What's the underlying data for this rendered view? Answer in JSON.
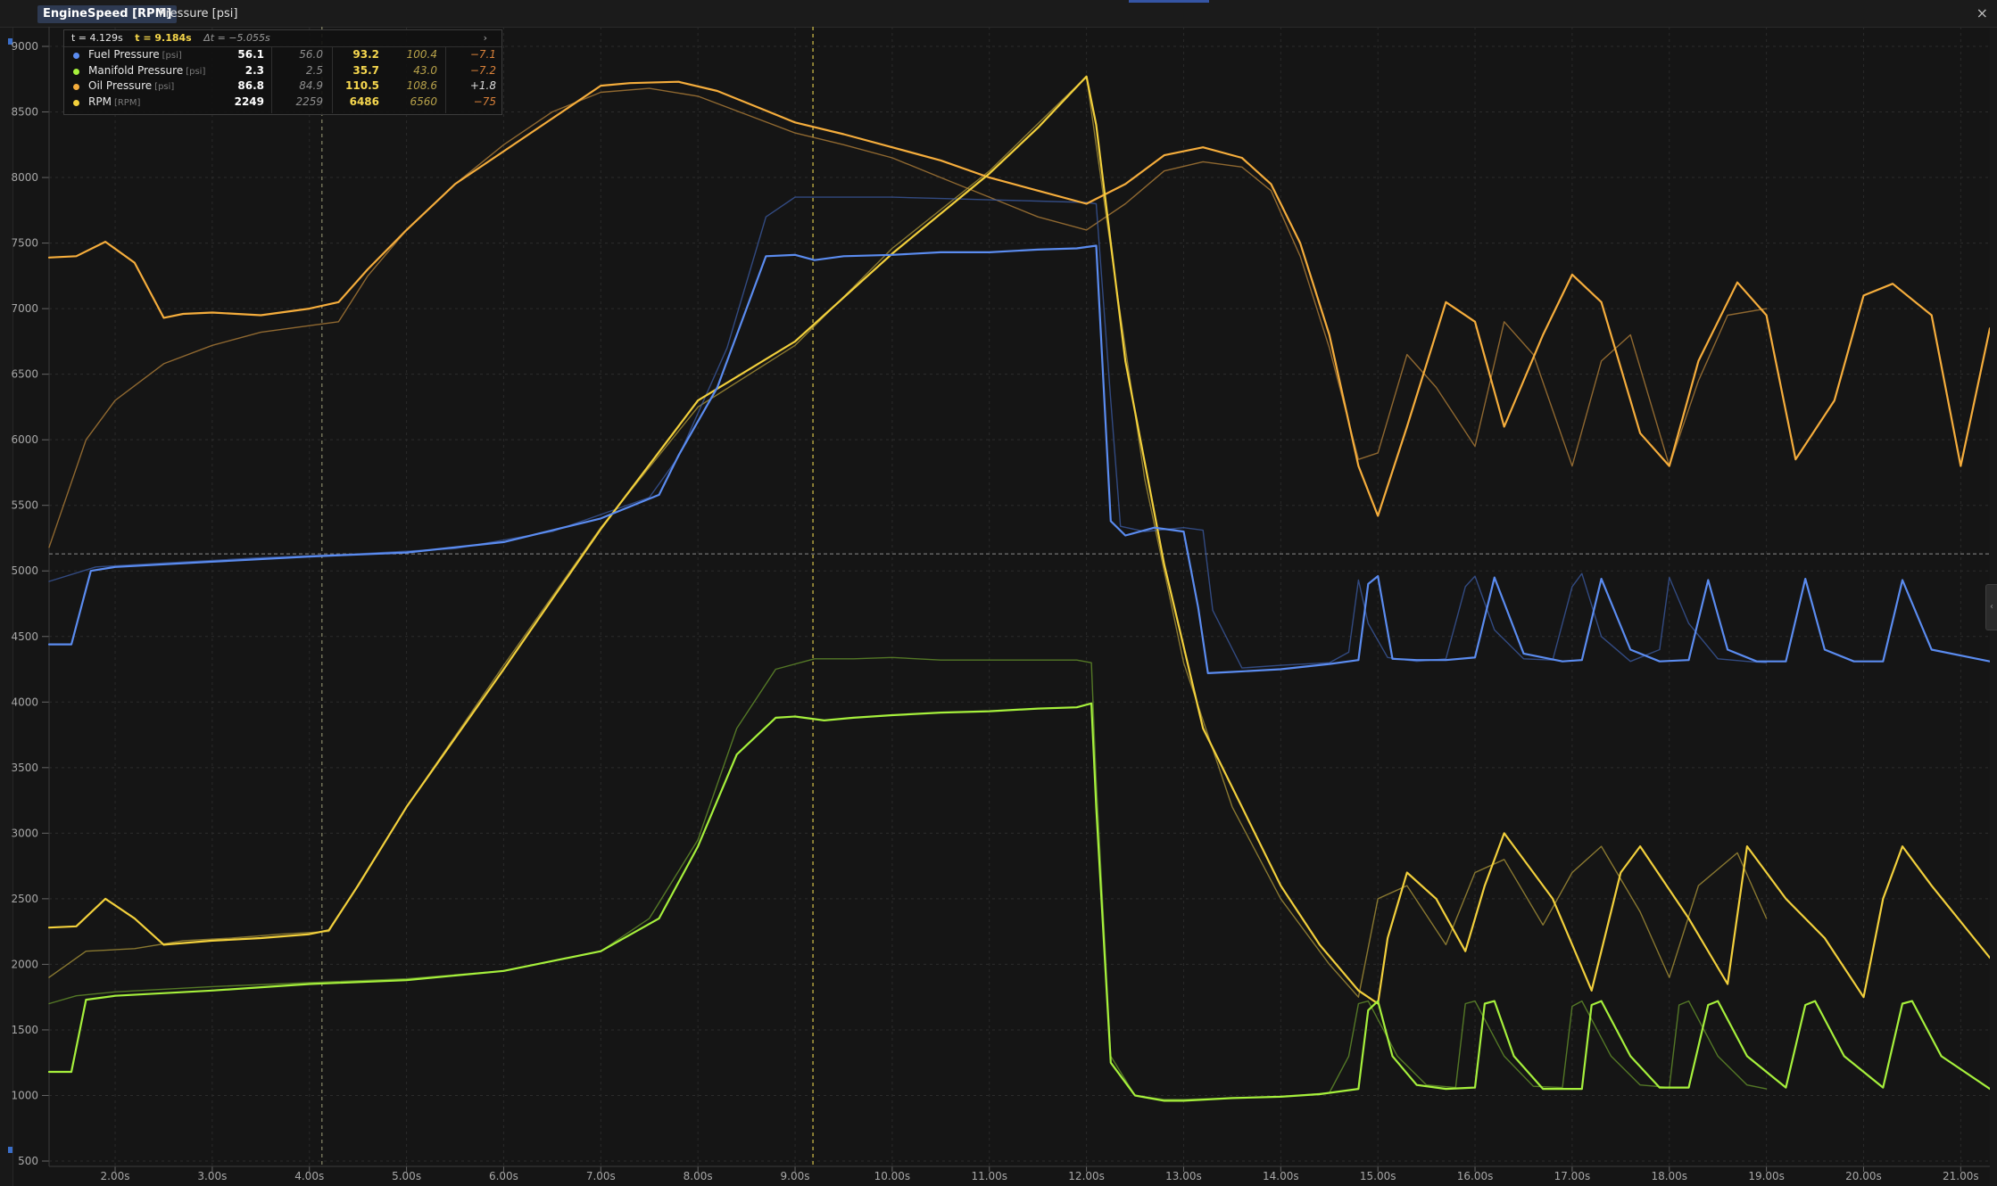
{
  "tabs": [
    {
      "label": "EngineSpeed [RPM]",
      "active": true
    },
    {
      "label": "Pressure [psi]",
      "active": false
    }
  ],
  "window": {
    "close_label": "×",
    "side_handle_label": "‹"
  },
  "cursor": {
    "t1_label": "t = 4.129s",
    "t2_label": "t = 9.184s",
    "dt_label": "Δt = −5.055s",
    "expand_label": "›"
  },
  "legend": {
    "rows": [
      {
        "name": "Fuel Pressure",
        "unit": "[psi]",
        "color": "#5b8cf0",
        "v1": "56.1",
        "r1": "56.0",
        "v2": "93.2",
        "r2": "100.4",
        "d": "−7.1"
      },
      {
        "name": "Manifold Pressure",
        "unit": "[psi]",
        "color": "#a6f03c",
        "v1": "2.3",
        "r1": "2.5",
        "v2": "35.7",
        "r2": "43.0",
        "d": "−7.2"
      },
      {
        "name": "Oil Pressure",
        "unit": "[psi]",
        "color": "#f5ad3c",
        "v1": "86.8",
        "r1": "84.9",
        "v2": "110.5",
        "r2": "108.6",
        "d": "+1.8"
      },
      {
        "name": "RPM",
        "unit": "[RPM]",
        "color": "#f2d03c",
        "v1": "2249",
        "r1": "2259",
        "v2": "6486",
        "r2": "6560",
        "d": "−75"
      }
    ]
  },
  "chart_data": {
    "type": "line",
    "xlabel": "",
    "ylabel": "",
    "xlim": [
      1.32,
      21.3
    ],
    "ylim": [
      500,
      9000
    ],
    "yticks": [
      500,
      1000,
      1500,
      2000,
      2500,
      3000,
      3500,
      4000,
      4500,
      5000,
      5500,
      6000,
      6500,
      7000,
      7500,
      8000,
      8500,
      9000
    ],
    "ytick_labels": [
      "500",
      "1000",
      "1500",
      "2000",
      "2500",
      "3000",
      "3500",
      "4000",
      "4500",
      "5000",
      "5500",
      "6000",
      "6500",
      "7000",
      "7500",
      "8000",
      "8500",
      "9000"
    ],
    "xticks": [
      2,
      3,
      4,
      5,
      6,
      7,
      8,
      9,
      10,
      11,
      12,
      13,
      14,
      15,
      16,
      17,
      18,
      19,
      20,
      21
    ],
    "xtick_labels": [
      "2.00s",
      "3.00s",
      "4.00s",
      "5.00s",
      "6.00s",
      "7.00s",
      "8.00s",
      "9.00s",
      "10.00s",
      "11.00s",
      "12.00s",
      "13.00s",
      "14.00s",
      "15.00s",
      "16.00s",
      "17.00s",
      "18.00s",
      "19.00s",
      "20.00s",
      "21.00s"
    ],
    "grid": true,
    "cursors": [
      {
        "x": 4.129,
        "color": "#8a8a6a"
      },
      {
        "x": 9.184,
        "color": "#d6c24a"
      }
    ],
    "horizontal_ref": 5130,
    "series": [
      {
        "name": "Oil Pressure",
        "color": "#f5ad3c",
        "faded": false,
        "x": [
          1.32,
          1.6,
          1.9,
          2.2,
          2.5,
          2.7,
          3.0,
          3.5,
          4.0,
          4.3,
          4.6,
          5.0,
          5.5,
          6.0,
          6.5,
          7.0,
          7.3,
          7.8,
          8.2,
          8.6,
          9.0,
          9.5,
          10.0,
          10.5,
          11.0,
          11.5,
          12.0,
          12.4,
          12.8,
          13.2,
          13.6,
          13.9,
          14.2,
          14.5,
          14.8,
          15.0,
          15.3,
          15.7,
          16.0,
          16.3,
          16.7,
          17.0,
          17.3,
          17.7,
          18.0,
          18.3,
          18.7,
          19.0,
          19.3,
          19.7,
          20.0,
          20.3,
          20.7,
          21.0,
          21.3
        ],
        "y": [
          7390,
          7400,
          7510,
          7350,
          6930,
          6960,
          6970,
          6950,
          7000,
          7050,
          7300,
          7600,
          7950,
          8200,
          8450,
          8700,
          8720,
          8730,
          8660,
          8540,
          8420,
          8330,
          8230,
          8130,
          8000,
          7900,
          7800,
          7950,
          8170,
          8230,
          8150,
          7950,
          7500,
          6800,
          5800,
          5420,
          6100,
          7050,
          6900,
          6100,
          6800,
          7260,
          7050,
          6050,
          5800,
          6600,
          7200,
          6950,
          5850,
          6300,
          7100,
          7190,
          6950,
          5800,
          6850
        ]
      },
      {
        "name": "Oil Pressure (ref)",
        "color": "#b8843a",
        "faded": true,
        "x": [
          1.32,
          1.7,
          2.0,
          2.5,
          3.0,
          3.5,
          4.0,
          4.3,
          4.6,
          5.0,
          5.5,
          6.0,
          6.5,
          7.0,
          7.5,
          8.0,
          8.5,
          9.0,
          9.5,
          10.0,
          10.5,
          11.0,
          11.5,
          12.0,
          12.4,
          12.8,
          13.2,
          13.6,
          13.9,
          14.2,
          14.5,
          14.8,
          15.0,
          15.3,
          15.6,
          16.0,
          16.3,
          16.6,
          17.0,
          17.3,
          17.6,
          18.0,
          18.3,
          18.6,
          19.0
        ],
        "y": [
          5180,
          6000,
          6300,
          6580,
          6720,
          6820,
          6870,
          6900,
          7250,
          7600,
          7950,
          8250,
          8500,
          8650,
          8680,
          8620,
          8480,
          8340,
          8250,
          8150,
          8000,
          7850,
          7700,
          7600,
          7800,
          8050,
          8120,
          8080,
          7900,
          7400,
          6700,
          5850,
          5900,
          6650,
          6400,
          5950,
          6900,
          6650,
          5800,
          6600,
          6800,
          5800,
          6450,
          6950,
          7000
        ]
      },
      {
        "name": "RPM",
        "color": "#f2d03c",
        "faded": false,
        "x": [
          1.32,
          1.6,
          1.9,
          2.2,
          2.5,
          3.0,
          3.5,
          4.0,
          4.2,
          4.5,
          5.0,
          6.0,
          7.0,
          8.0,
          9.0,
          10.0,
          11.0,
          11.5,
          12.0,
          12.1,
          12.4,
          12.8,
          13.2,
          13.6,
          14.0,
          14.4,
          14.8,
          15.0,
          15.1,
          15.3,
          15.6,
          15.9,
          16.1,
          16.3,
          16.8,
          17.2,
          17.5,
          17.7,
          18.2,
          18.6,
          18.8,
          19.2,
          19.6,
          20.0,
          20.2,
          20.4,
          20.7,
          21.3
        ],
        "y": [
          2280,
          2290,
          2500,
          2350,
          2150,
          2180,
          2200,
          2230,
          2260,
          2600,
          3200,
          4250,
          5320,
          6300,
          6750,
          7420,
          8030,
          8380,
          8770,
          8400,
          6600,
          5050,
          3800,
          3200,
          2600,
          2150,
          1800,
          1700,
          2200,
          2700,
          2500,
          2100,
          2600,
          3000,
          2500,
          1800,
          2700,
          2900,
          2350,
          1850,
          2900,
          2500,
          2200,
          1750,
          2500,
          2900,
          2600,
          2050
        ]
      },
      {
        "name": "RPM (ref)",
        "color": "#b09a3a",
        "faded": true,
        "x": [
          1.32,
          1.7,
          2.2,
          2.7,
          3.2,
          3.7,
          4.2,
          5.0,
          6.0,
          7.0,
          8.0,
          9.0,
          10.0,
          11.0,
          12.0,
          12.3,
          12.6,
          13.0,
          13.5,
          14.0,
          14.5,
          14.8,
          15.0,
          15.3,
          15.7,
          16.0,
          16.3,
          16.7,
          17.0,
          17.3,
          17.7,
          18.0,
          18.3,
          18.7,
          19.0
        ],
        "y": [
          1900,
          2100,
          2120,
          2180,
          2200,
          2230,
          2250,
          3200,
          4280,
          5330,
          6250,
          6720,
          7460,
          8050,
          8770,
          7200,
          5700,
          4300,
          3200,
          2500,
          2000,
          1750,
          2500,
          2600,
          2150,
          2700,
          2800,
          2300,
          2700,
          2900,
          2400,
          1900,
          2600,
          2850,
          2350
        ]
      },
      {
        "name": "Fuel Pressure",
        "color": "#5b8cf0",
        "faded": false,
        "x": [
          1.32,
          1.55,
          1.75,
          2.0,
          3.0,
          4.0,
          5.0,
          6.0,
          7.0,
          7.6,
          7.8,
          8.2,
          8.7,
          9.0,
          9.2,
          9.5,
          10.0,
          10.5,
          11.0,
          11.5,
          11.9,
          12.1,
          12.25,
          12.4,
          12.7,
          13.0,
          13.15,
          13.25,
          13.5,
          14.0,
          14.5,
          14.8,
          14.9,
          15.0,
          15.15,
          15.4,
          15.7,
          16.0,
          16.2,
          16.5,
          16.9,
          17.1,
          17.3,
          17.6,
          17.9,
          18.2,
          18.4,
          18.6,
          18.9,
          19.2,
          19.4,
          19.6,
          19.9,
          20.2,
          20.4,
          20.7,
          21.3
        ],
        "y": [
          4440,
          4440,
          5000,
          5030,
          5070,
          5110,
          5140,
          5220,
          5400,
          5580,
          5880,
          6400,
          7400,
          7410,
          7370,
          7400,
          7410,
          7430,
          7430,
          7450,
          7460,
          7480,
          5380,
          5270,
          5330,
          5300,
          4720,
          4220,
          4230,
          4250,
          4290,
          4320,
          4900,
          4960,
          4330,
          4320,
          4320,
          4340,
          4950,
          4370,
          4310,
          4320,
          4940,
          4400,
          4310,
          4320,
          4930,
          4400,
          4310,
          4310,
          4940,
          4400,
          4310,
          4310,
          4930,
          4400,
          4310
        ]
      },
      {
        "name": "Fuel Pressure (ref)",
        "color": "#3c5ca6",
        "faded": true,
        "x": [
          1.32,
          1.8,
          2.5,
          3.5,
          4.5,
          5.5,
          6.5,
          7.5,
          7.8,
          8.3,
          8.7,
          9.0,
          9.5,
          10.0,
          10.5,
          11.0,
          11.5,
          12.0,
          12.1,
          12.25,
          12.35,
          12.6,
          13.0,
          13.2,
          13.3,
          13.6,
          14.0,
          14.5,
          14.7,
          14.8,
          14.9,
          15.1,
          15.4,
          15.7,
          15.9,
          16.0,
          16.2,
          16.5,
          16.8,
          17.0,
          17.1,
          17.3,
          17.6,
          17.9,
          18.0,
          18.2,
          18.5,
          18.8,
          19.0
        ],
        "y": [
          4920,
          5030,
          5060,
          5100,
          5130,
          5170,
          5300,
          5560,
          5870,
          6700,
          7700,
          7850,
          7850,
          7850,
          7840,
          7830,
          7820,
          7810,
          7800,
          6300,
          5340,
          5300,
          5330,
          5310,
          4700,
          4260,
          4280,
          4300,
          4380,
          4930,
          4600,
          4340,
          4310,
          4330,
          4880,
          4960,
          4550,
          4330,
          4320,
          4880,
          4980,
          4500,
          4310,
          4400,
          4950,
          4600,
          4330,
          4310,
          4300
        ]
      },
      {
        "name": "Manifold Pressure",
        "color": "#a6f03c",
        "faded": false,
        "x": [
          1.32,
          1.55,
          1.7,
          2.0,
          3.0,
          4.0,
          5.0,
          6.0,
          7.0,
          7.6,
          8.0,
          8.4,
          8.8,
          9.0,
          9.3,
          9.6,
          10.0,
          10.5,
          11.0,
          11.5,
          11.9,
          12.05,
          12.1,
          12.25,
          12.5,
          12.8,
          13.0,
          13.5,
          14.0,
          14.4,
          14.8,
          14.9,
          15.0,
          15.15,
          15.4,
          15.7,
          16.0,
          16.1,
          16.2,
          16.4,
          16.7,
          17.1,
          17.2,
          17.3,
          17.6,
          17.9,
          18.2,
          18.4,
          18.5,
          18.8,
          19.2,
          19.4,
          19.5,
          19.8,
          20.2,
          20.4,
          20.5,
          20.8,
          21.3
        ],
        "y": [
          1180,
          1180,
          1730,
          1760,
          1800,
          1850,
          1880,
          1950,
          2100,
          2350,
          2900,
          3600,
          3880,
          3890,
          3860,
          3880,
          3900,
          3920,
          3930,
          3950,
          3960,
          3990,
          3200,
          1250,
          1000,
          960,
          960,
          980,
          990,
          1010,
          1050,
          1650,
          1720,
          1300,
          1080,
          1050,
          1060,
          1700,
          1720,
          1300,
          1050,
          1050,
          1690,
          1720,
          1300,
          1060,
          1060,
          1690,
          1720,
          1300,
          1060,
          1690,
          1720,
          1300,
          1060,
          1700,
          1720,
          1300,
          1050
        ]
      },
      {
        "name": "Manifold Pressure (ref)",
        "color": "#6a9a2c",
        "faded": true,
        "x": [
          1.32,
          1.6,
          2.0,
          3.0,
          4.0,
          5.0,
          6.0,
          7.0,
          7.5,
          8.0,
          8.4,
          8.8,
          9.2,
          9.6,
          10.0,
          10.5,
          11.0,
          11.5,
          11.9,
          12.05,
          12.1,
          12.25,
          12.5,
          12.8,
          13.0,
          13.5,
          14.0,
          14.5,
          14.7,
          14.8,
          14.9,
          15.2,
          15.5,
          15.8,
          15.9,
          16.0,
          16.3,
          16.6,
          16.9,
          17.0,
          17.1,
          17.4,
          17.7,
          18.0,
          18.1,
          18.2,
          18.5,
          18.8,
          19.0
        ],
        "y": [
          1700,
          1760,
          1790,
          1830,
          1860,
          1890,
          1950,
          2100,
          2350,
          2950,
          3800,
          4250,
          4330,
          4330,
          4340,
          4320,
          4320,
          4320,
          4320,
          4300,
          3400,
          1300,
          1000,
          970,
          970,
          980,
          990,
          1020,
          1300,
          1700,
          1720,
          1300,
          1080,
          1060,
          1700,
          1720,
          1300,
          1070,
          1060,
          1680,
          1720,
          1300,
          1080,
          1060,
          1690,
          1720,
          1300,
          1080,
          1050
        ]
      }
    ]
  }
}
